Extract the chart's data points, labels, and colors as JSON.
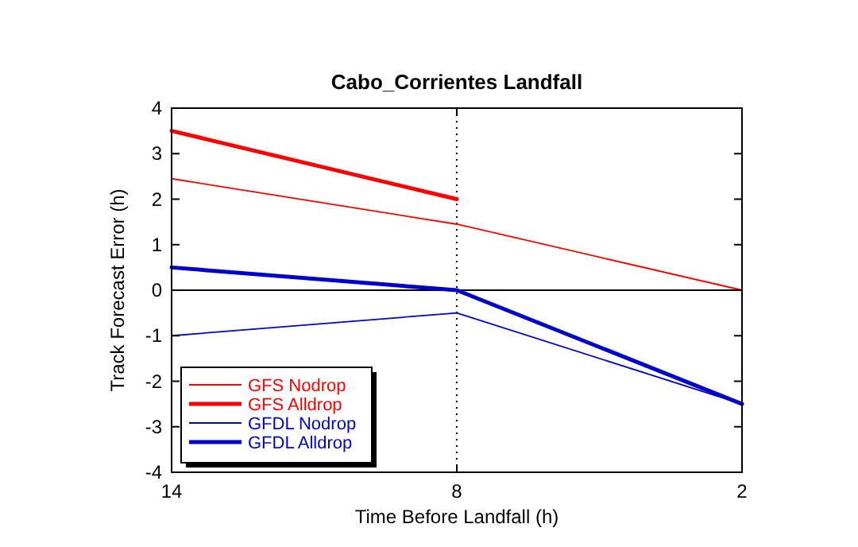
{
  "chart_data": {
    "type": "line",
    "title": "Cabo_Corrientes Landfall",
    "xlabel": "Time Before Landfall (h)",
    "ylabel": "Track Forecast Error (h)",
    "x": [
      14,
      8,
      2
    ],
    "xlim": [
      14,
      2
    ],
    "xticks": [
      14,
      8,
      2
    ],
    "ylim": [
      -4,
      4
    ],
    "yticks": [
      -4,
      -3,
      -2,
      -1,
      0,
      1,
      2,
      3,
      4
    ],
    "series": [
      {
        "name": "GFS Nodrop",
        "color": "#ff0000",
        "values": [
          2.45,
          1.45,
          0
        ]
      },
      {
        "name": "GFS Alldrop",
        "color": "#ff0000",
        "values": [
          3.5,
          2.0,
          null
        ]
      },
      {
        "name": "GFDL Nodrop",
        "color": "#0000cc",
        "values": [
          -1.0,
          -0.5,
          -2.5
        ]
      },
      {
        "name": "GFDL Alldrop",
        "color": "#0000cc",
        "values": [
          0.5,
          0,
          -2.5
        ]
      }
    ],
    "ref_lines": [
      {
        "axis": "x",
        "value": 8,
        "line_style": "dotted",
        "color": "#000000"
      },
      {
        "axis": "y",
        "value": 0,
        "line_style": "solid",
        "color": "#000000"
      }
    ],
    "legend": "bottom left",
    "marker": "none",
    "line_style": "solid",
    "grid": false
  }
}
